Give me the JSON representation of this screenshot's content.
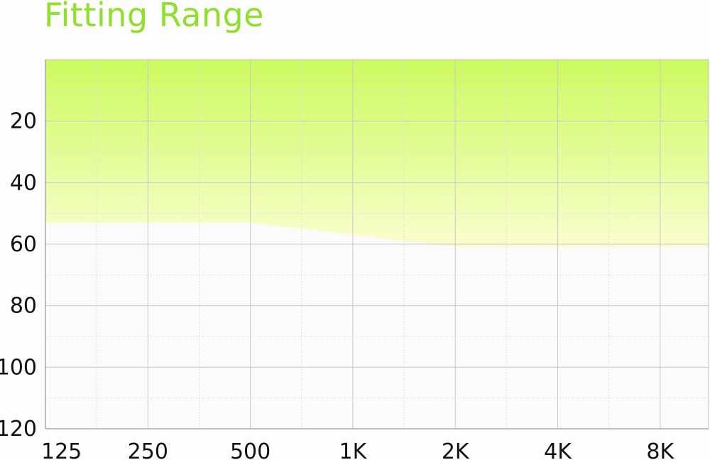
{
  "chart_data": {
    "type": "area",
    "title": "Fitting Range",
    "xlabel": "",
    "ylabel": "",
    "x_scale": "log2",
    "x_ticks": [
      "125",
      "250",
      "500",
      "1K",
      "2K",
      "4K",
      "8K"
    ],
    "x_values": [
      125,
      250,
      500,
      1000,
      2000,
      4000,
      8000
    ],
    "y_ticks": [
      "20",
      "40",
      "60",
      "80",
      "100",
      "120"
    ],
    "y_tick_values": [
      20,
      40,
      60,
      80,
      100,
      120
    ],
    "ylim": [
      0,
      120
    ],
    "y_inverted": true,
    "grid": true,
    "series": [
      {
        "x": [
          125,
          250,
          500,
          1000,
          2000,
          4000,
          8000,
          12000
        ],
        "values": [
          53,
          53,
          53,
          57,
          61,
          61,
          61,
          61
        ]
      }
    ],
    "fill_colors": [
      "#ccfa5e",
      "#fafecf"
    ]
  }
}
